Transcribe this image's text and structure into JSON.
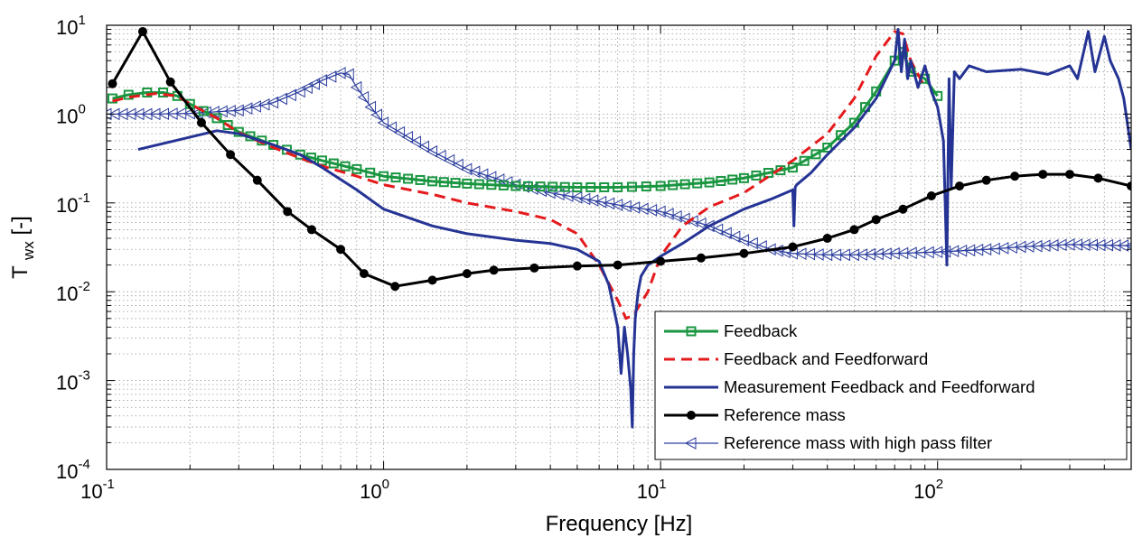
{
  "chart_data": {
    "type": "line",
    "xscale": "log",
    "yscale": "log",
    "xlim": [
      0.1,
      500
    ],
    "ylim": [
      0.0001,
      10
    ],
    "grid": true,
    "legend_position": "bottom-right",
    "xlabel": "Frequency [Hz]",
    "ylabel": {
      "base": "T",
      "sub": "wx",
      "suffix": " [-]"
    },
    "x_ticks": [
      {
        "value": 0.1,
        "base": "10",
        "exp": "-1"
      },
      {
        "value": 1,
        "base": "10",
        "exp": "0"
      },
      {
        "value": 10,
        "base": "10",
        "exp": "1"
      },
      {
        "value": 100,
        "base": "10",
        "exp": "2"
      }
    ],
    "y_ticks": [
      {
        "value": 0.0001,
        "base": "10",
        "exp": "-4"
      },
      {
        "value": 0.001,
        "base": "10",
        "exp": "-3"
      },
      {
        "value": 0.01,
        "base": "10",
        "exp": "-2"
      },
      {
        "value": 0.1,
        "base": "10",
        "exp": "-1"
      },
      {
        "value": 1,
        "base": "10",
        "exp": "0"
      },
      {
        "value": 10,
        "base": "10",
        "exp": "1"
      }
    ],
    "series": [
      {
        "name": "Feedback",
        "color": "#1a9641",
        "marker": "square",
        "dash": "solid",
        "x": [
          0.105,
          0.12,
          0.14,
          0.16,
          0.18,
          0.2,
          0.25,
          0.3,
          0.4,
          0.5,
          0.6,
          0.8,
          1.0,
          1.5,
          2.0,
          3.0,
          5.0,
          7.0,
          10,
          15,
          20,
          30,
          40,
          50,
          60,
          70,
          75,
          80,
          90,
          100
        ],
        "y": [
          1.5,
          1.65,
          1.75,
          1.75,
          1.6,
          1.3,
          0.9,
          0.63,
          0.45,
          0.35,
          0.3,
          0.24,
          0.2,
          0.175,
          0.165,
          0.155,
          0.15,
          0.15,
          0.155,
          0.17,
          0.19,
          0.25,
          0.42,
          0.8,
          1.8,
          4.0,
          5.0,
          3.0,
          2.5,
          1.6
        ]
      },
      {
        "name": "Feedback and Feedforward",
        "color": "#e41a1c",
        "marker": "none",
        "dash": "dash",
        "x": [
          0.105,
          0.12,
          0.15,
          0.18,
          0.2,
          0.25,
          0.3,
          0.4,
          0.5,
          0.6,
          0.8,
          1.0,
          1.5,
          2.0,
          3.0,
          4.0,
          5.0,
          6.0,
          7.0,
          7.5,
          8.0,
          9.0,
          10,
          12,
          15,
          20,
          30,
          40,
          50,
          60,
          70,
          75,
          80,
          90
        ],
        "y": [
          1.4,
          1.55,
          1.7,
          1.6,
          1.3,
          0.9,
          0.62,
          0.42,
          0.32,
          0.26,
          0.2,
          0.16,
          0.125,
          0.1,
          0.08,
          0.065,
          0.045,
          0.02,
          0.008,
          0.005,
          0.0055,
          0.01,
          0.025,
          0.055,
          0.09,
          0.13,
          0.3,
          0.6,
          1.5,
          4.5,
          8.5,
          8.0,
          4.0,
          2.0
        ]
      },
      {
        "name": "Measurement Feedback and Feedforward",
        "color": "#253494",
        "marker": "none",
        "dash": "solid",
        "x": [
          0.13,
          0.2,
          0.25,
          0.3,
          0.4,
          0.5,
          0.6,
          0.8,
          1.0,
          1.5,
          2.0,
          3.0,
          4.0,
          5.0,
          6.0,
          6.5,
          7.0,
          7.2,
          7.4,
          7.6,
          7.8,
          7.9,
          8.0,
          8.1,
          8.3,
          8.5,
          9.0,
          10,
          12,
          15,
          20,
          25,
          30,
          30.3,
          30.6,
          31,
          35,
          40,
          50,
          60,
          70,
          72,
          74,
          76,
          78,
          80,
          85,
          90,
          95,
          100,
          105,
          108,
          110,
          112,
          115,
          120,
          130,
          150,
          200,
          250,
          300,
          320,
          350,
          370,
          400,
          420,
          450,
          470,
          500
        ],
        "y": [
          0.4,
          0.55,
          0.65,
          0.6,
          0.45,
          0.35,
          0.25,
          0.14,
          0.085,
          0.055,
          0.045,
          0.038,
          0.035,
          0.03,
          0.022,
          0.012,
          0.004,
          0.0012,
          0.004,
          0.002,
          0.0008,
          0.0003,
          0.002,
          0.005,
          0.01,
          0.015,
          0.02,
          0.025,
          0.035,
          0.055,
          0.085,
          0.11,
          0.14,
          0.055,
          0.15,
          0.16,
          0.22,
          0.35,
          0.7,
          1.5,
          4.0,
          9.0,
          3.0,
          7.0,
          2.5,
          4.0,
          2.0,
          3.5,
          1.8,
          1.2,
          0.5,
          0.02,
          2.5,
          0.15,
          3.0,
          2.5,
          3.5,
          3.0,
          3.2,
          2.8,
          3.5,
          2.5,
          8.5,
          3.0,
          7.5,
          4.0,
          2.5,
          1.5,
          0.4
        ]
      },
      {
        "name": "Reference mass",
        "color": "#000000",
        "marker": "circle",
        "dash": "solid",
        "x": [
          0.105,
          0.135,
          0.17,
          0.22,
          0.28,
          0.35,
          0.45,
          0.55,
          0.7,
          0.85,
          1.1,
          1.5,
          2.0,
          2.5,
          3.5,
          5.0,
          7.0,
          10,
          14,
          20,
          30,
          40,
          50,
          60,
          75,
          95,
          120,
          150,
          190,
          240,
          300,
          380,
          500
        ],
        "y": [
          2.2,
          8.5,
          2.3,
          0.8,
          0.35,
          0.18,
          0.08,
          0.05,
          0.03,
          0.016,
          0.0115,
          0.0135,
          0.016,
          0.0175,
          0.0185,
          0.0195,
          0.02,
          0.022,
          0.024,
          0.027,
          0.032,
          0.04,
          0.05,
          0.065,
          0.085,
          0.12,
          0.155,
          0.18,
          0.2,
          0.21,
          0.21,
          0.19,
          0.155
        ]
      },
      {
        "name": "Reference mass with high pass filter",
        "color": "#2c3e9e",
        "marker": "triangle-left",
        "dash": "solid",
        "x": [
          0.1,
          0.15,
          0.2,
          0.3,
          0.4,
          0.5,
          0.6,
          0.7,
          0.75,
          0.8,
          0.9,
          1.0,
          1.5,
          2.0,
          3.0,
          4.0,
          5.0,
          7.0,
          10,
          15,
          20,
          25,
          30,
          40,
          50,
          70,
          100,
          150,
          200,
          300,
          500
        ],
        "y": [
          1.0,
          1.0,
          1.02,
          1.1,
          1.35,
          1.8,
          2.4,
          2.9,
          2.8,
          2.0,
          1.2,
          0.8,
          0.38,
          0.24,
          0.16,
          0.13,
          0.115,
          0.095,
          0.08,
          0.055,
          0.038,
          0.03,
          0.027,
          0.026,
          0.026,
          0.027,
          0.028,
          0.03,
          0.032,
          0.034,
          0.033
        ]
      }
    ]
  }
}
